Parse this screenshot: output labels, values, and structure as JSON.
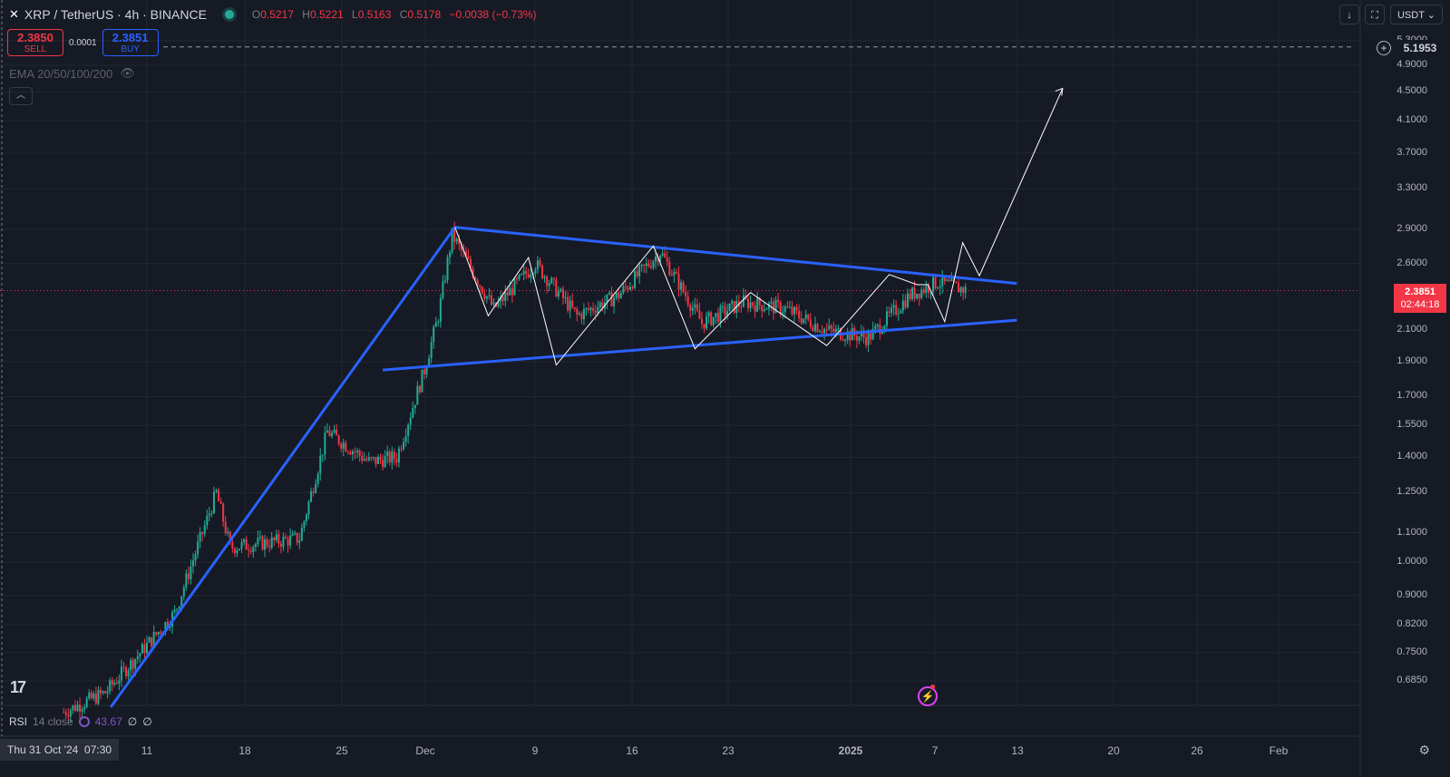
{
  "header": {
    "symbol": "XRP / TetherUS · 4h · BINANCE",
    "ohlc": {
      "o_label": "O",
      "o": "0.5217",
      "h_label": "H",
      "h": "0.5221",
      "l_label": "L",
      "l": "0.5163",
      "c_label": "C",
      "c": "0.5178",
      "change": "−0.0038 (−0.73%)"
    }
  },
  "trade": {
    "sell_price": "2.3850",
    "sell_label": "SELL",
    "spread": "0.0001",
    "buy_price": "2.3851",
    "buy_label": "BUY"
  },
  "indicator": {
    "ema_label": "EMA 20/50/100/200"
  },
  "toolbar": {
    "currency": "USDT",
    "download_icon": "download-icon",
    "fullscreen_icon": "fullscreen-icon"
  },
  "horizontal_line": {
    "price": "5.1953"
  },
  "current_price": {
    "price": "2.3851",
    "countdown": "02:44:18"
  },
  "rsi": {
    "name": "RSI",
    "params": "14 close",
    "value": "43.67",
    "extra1": "∅",
    "extra2": "∅"
  },
  "x_axis": {
    "cursor_date": "Thu 31 Oct '24",
    "cursor_time": "07:30",
    "ticks": [
      "11",
      "18",
      "25",
      "Dec",
      "9",
      "16",
      "23",
      "2025",
      "7",
      "13",
      "20",
      "26",
      "Feb"
    ]
  },
  "y_axis": {
    "ticks": [
      "5.3000",
      "4.9000",
      "4.5000",
      "4.1000",
      "3.7000",
      "3.3000",
      "2.9000",
      "2.6000",
      "2.1000",
      "1.9000",
      "1.7000",
      "1.5500",
      "1.4000",
      "1.2500",
      "1.1000",
      "1.0000",
      "0.9000",
      "0.8200",
      "0.7500",
      "0.6850"
    ]
  },
  "colors": {
    "up": "#22ab94",
    "down": "#f23645",
    "trendline": "#2962ff",
    "projection": "#ffffff",
    "background": "#161a25"
  },
  "chart_data": {
    "type": "candlestick",
    "scale": "log",
    "x": [
      "Nov 5",
      "Nov 11",
      "Nov 18",
      "Nov 25",
      "Dec 2",
      "Dec 9",
      "Dec 16",
      "Dec 23",
      "Dec 30",
      "Jan 6"
    ],
    "close": [
      0.52,
      0.75,
      1.1,
      1.45,
      2.3,
      2.2,
      2.45,
      2.3,
      2.1,
      2.39
    ],
    "ylim": [
      0.62,
      5.4
    ],
    "trendlines": [
      {
        "name": "upper",
        "from": [
          "Dec 3",
          2.92
        ],
        "to": [
          "Jan 13",
          2.44
        ]
      },
      {
        "name": "lower",
        "from": [
          "Nov 29",
          1.85
        ],
        "to": [
          "Jan 13",
          2.17
        ]
      },
      {
        "name": "rising",
        "from": [
          "Nov 8",
          0.63
        ],
        "to": [
          "Dec 3",
          2.92
        ]
      }
    ]
  }
}
